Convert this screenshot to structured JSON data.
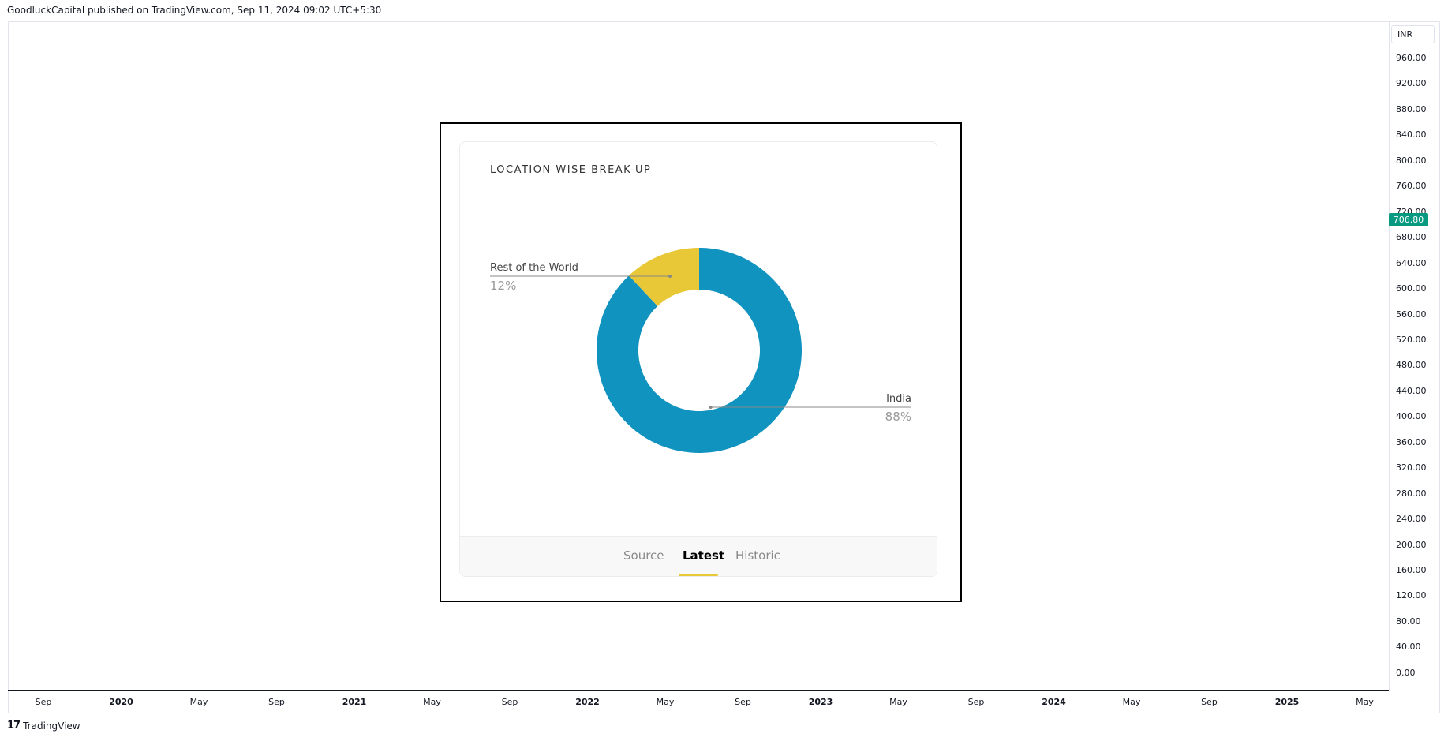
{
  "header": {
    "text": "GoodluckCapital published on TradingView.com, Sep 11, 2024 09:02 UTC+5:30"
  },
  "price_scale": {
    "currency": "INR",
    "ticks": [
      "960.00",
      "920.00",
      "880.00",
      "840.00",
      "800.00",
      "760.00",
      "720.00",
      "680.00",
      "640.00",
      "600.00",
      "560.00",
      "520.00",
      "480.00",
      "440.00",
      "400.00",
      "360.00",
      "320.00",
      "280.00",
      "240.00",
      "200.00",
      "160.00",
      "120.00",
      "80.00",
      "40.00",
      "0.00"
    ],
    "last_price": "706.80",
    "last_price_color": "#089981"
  },
  "time_scale": {
    "ticks": [
      {
        "label": "Sep",
        "year": false
      },
      {
        "label": "2020",
        "year": true
      },
      {
        "label": "May",
        "year": false
      },
      {
        "label": "Sep",
        "year": false
      },
      {
        "label": "2021",
        "year": true
      },
      {
        "label": "May",
        "year": false
      },
      {
        "label": "Sep",
        "year": false
      },
      {
        "label": "2022",
        "year": true
      },
      {
        "label": "May",
        "year": false
      },
      {
        "label": "Sep",
        "year": false
      },
      {
        "label": "2023",
        "year": true
      },
      {
        "label": "May",
        "year": false
      },
      {
        "label": "Sep",
        "year": false
      },
      {
        "label": "2024",
        "year": true
      },
      {
        "label": "May",
        "year": false
      },
      {
        "label": "Sep",
        "year": false
      },
      {
        "label": "2025",
        "year": true
      },
      {
        "label": "May",
        "year": false
      }
    ]
  },
  "footer": {
    "logo": "17",
    "brand": "TradingView"
  },
  "card": {
    "title": "LOCATION WISE BREAK-UP",
    "tabs": [
      "Source",
      "Latest",
      "Historic"
    ],
    "active_tab": "Latest",
    "accent_color": "#e9c837"
  },
  "chart_data": {
    "type": "pie",
    "title": "LOCATION WISE BREAK-UP",
    "donut": true,
    "slices": [
      {
        "label": "India",
        "value": 88,
        "display": "88%",
        "color": "#1193c0"
      },
      {
        "label": "Rest of the World",
        "value": 12,
        "display": "12%",
        "color": "#e9c837"
      }
    ]
  }
}
